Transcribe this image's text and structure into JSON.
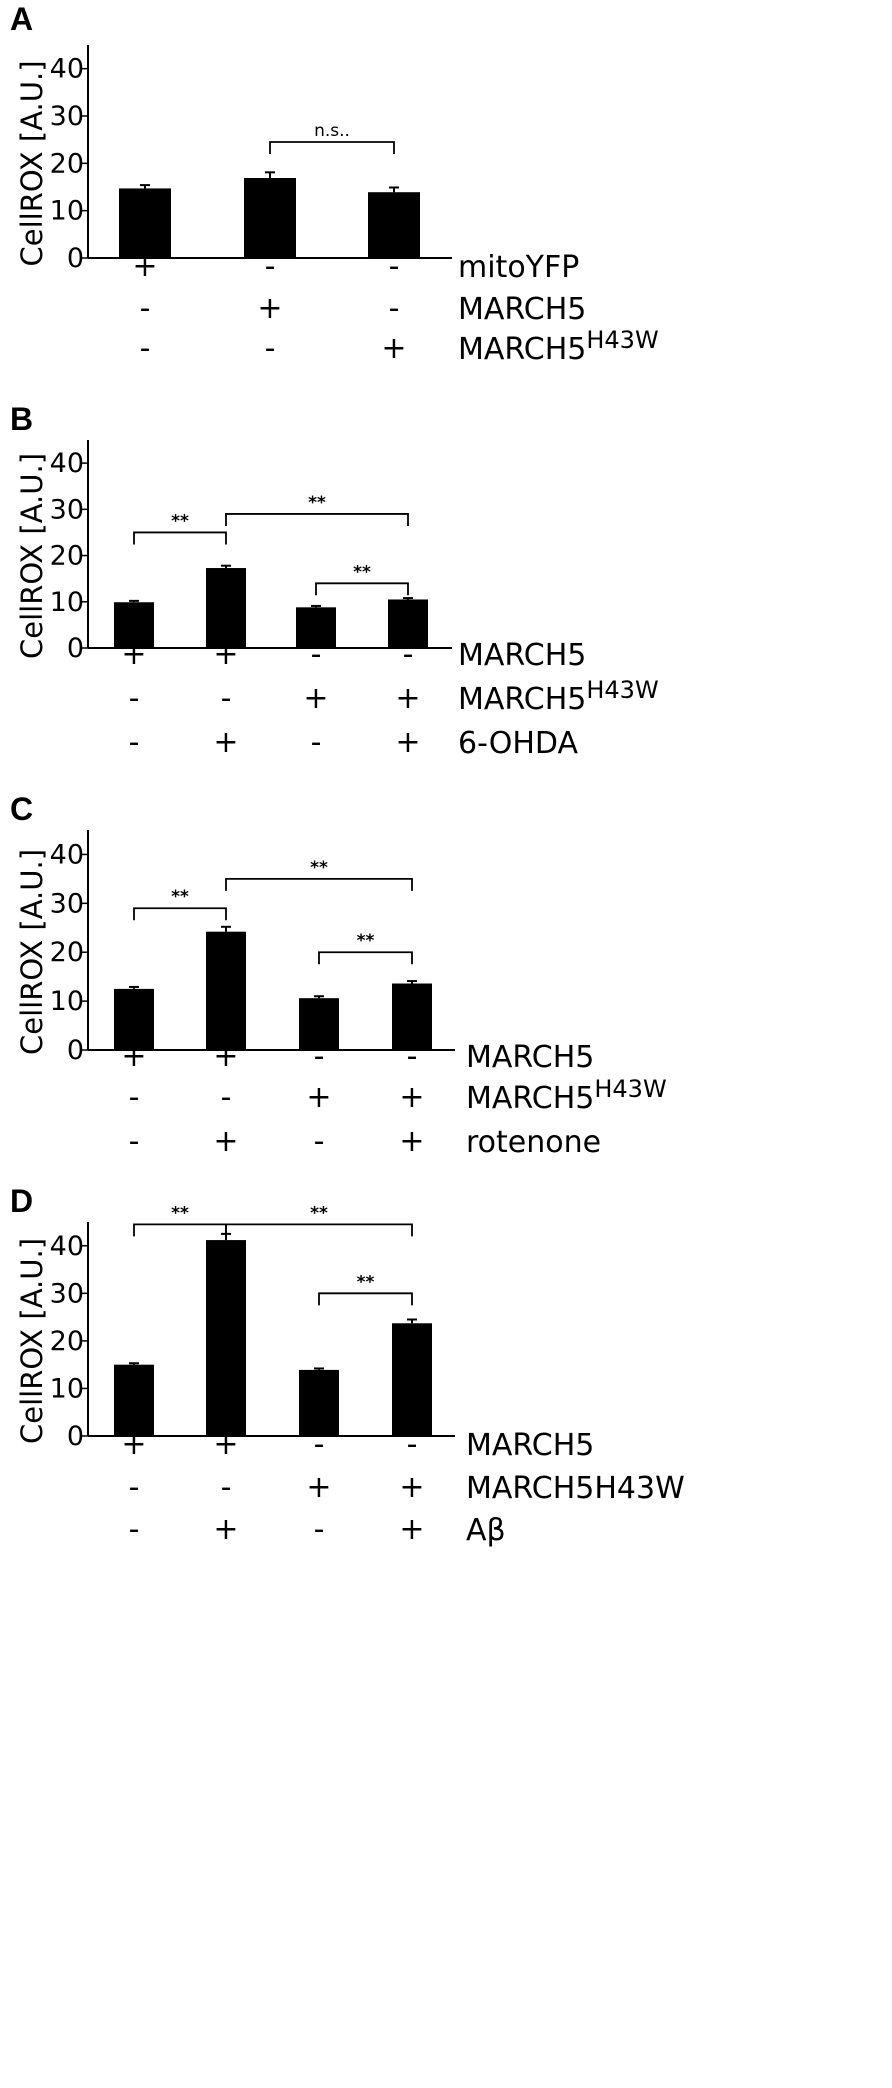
{
  "chart_data": [
    {
      "type": "bar",
      "panel": "A",
      "ylabel": "CellROX [A.U.]",
      "ylim": [
        0,
        45
      ],
      "yticks": [
        "0",
        "10",
        "20",
        "30",
        "40"
      ],
      "values": [
        14.7,
        16.9,
        13.9
      ],
      "errors": [
        0.7,
        1.2,
        1.0
      ],
      "conditions": [
        {
          "label": "mitoYFP",
          "sup": "",
          "signs": [
            "+",
            "-",
            "-"
          ]
        },
        {
          "label": "MARCH5",
          "sup": "",
          "signs": [
            "-",
            "+",
            "-"
          ]
        },
        {
          "label": "MARCH5",
          "sup": "H43W",
          "signs": [
            "-",
            "-",
            "+"
          ]
        }
      ],
      "significance": [
        {
          "from": 1,
          "to": 2,
          "text": "n.s..",
          "level": 24.5
        }
      ]
    },
    {
      "type": "bar",
      "panel": "B",
      "ylabel": "CellROX [A.U.]",
      "ylim": [
        0,
        45
      ],
      "yticks": [
        "0",
        "10",
        "20",
        "30",
        "40"
      ],
      "values": [
        9.9,
        17.3,
        8.8,
        10.5
      ],
      "errors": [
        0.3,
        0.5,
        0.3,
        0.3
      ],
      "conditions": [
        {
          "label": "MARCH5",
          "sup": "",
          "signs": [
            "+",
            "+",
            "-",
            "-"
          ]
        },
        {
          "label": "MARCH5",
          "sup": "H43W",
          "signs": [
            "-",
            "-",
            "+",
            "+"
          ]
        },
        {
          "label": "6-OHDA",
          "sup": "",
          "signs": [
            "-",
            "+",
            "-",
            "+"
          ]
        }
      ],
      "significance": [
        {
          "from": 0,
          "to": 1,
          "text": "**",
          "level": 25
        },
        {
          "from": 1,
          "to": 3,
          "text": "**",
          "level": 29
        },
        {
          "from": 2,
          "to": 3,
          "text": "**",
          "level": 14
        }
      ]
    },
    {
      "type": "bar",
      "panel": "C",
      "ylabel": "CellROX [A.U.]",
      "ylim": [
        0,
        45
      ],
      "yticks": [
        "0",
        "10",
        "20",
        "30",
        "40"
      ],
      "values": [
        12.5,
        24.2,
        10.6,
        13.6
      ],
      "errors": [
        0.4,
        1.0,
        0.4,
        0.5
      ],
      "conditions": [
        {
          "label": "MARCH5",
          "sup": "",
          "signs": [
            "+",
            "+",
            "-",
            "-"
          ]
        },
        {
          "label": "MARCH5",
          "sup": "H43W",
          "signs": [
            "-",
            "-",
            "+",
            "+"
          ]
        },
        {
          "label": "rotenone",
          "sup": "",
          "signs": [
            "-",
            "+",
            "-",
            "+"
          ]
        }
      ],
      "significance": [
        {
          "from": 0,
          "to": 1,
          "text": "**",
          "level": 29
        },
        {
          "from": 1,
          "to": 3,
          "text": "**",
          "level": 35
        },
        {
          "from": 2,
          "to": 3,
          "text": "**",
          "level": 20
        }
      ]
    },
    {
      "type": "bar",
      "panel": "D",
      "ylabel": "CellROX [A.U.]",
      "ylim": [
        0,
        45
      ],
      "yticks": [
        "0",
        "10",
        "20",
        "30",
        "40"
      ],
      "values": [
        15.0,
        41.2,
        13.9,
        23.7
      ],
      "errors": [
        0.3,
        1.3,
        0.3,
        0.8
      ],
      "conditions": [
        {
          "label": "MARCH5",
          "sup": "",
          "signs": [
            "+",
            "+",
            "-",
            "-"
          ]
        },
        {
          "label": "MARCH5H43W",
          "sup": "",
          "signs": [
            "-",
            "-",
            "+",
            "+"
          ]
        },
        {
          "label": "Aβ",
          "sup": "",
          "signs": [
            "-",
            "+",
            "-",
            "+"
          ]
        }
      ],
      "significance": [
        {
          "from": 0,
          "to": 1,
          "text": "**",
          "level": 44.5
        },
        {
          "from": 1,
          "to": 3,
          "text": "**",
          "level": 44.5
        },
        {
          "from": 2,
          "to": 3,
          "text": "**",
          "level": 30
        }
      ]
    }
  ]
}
